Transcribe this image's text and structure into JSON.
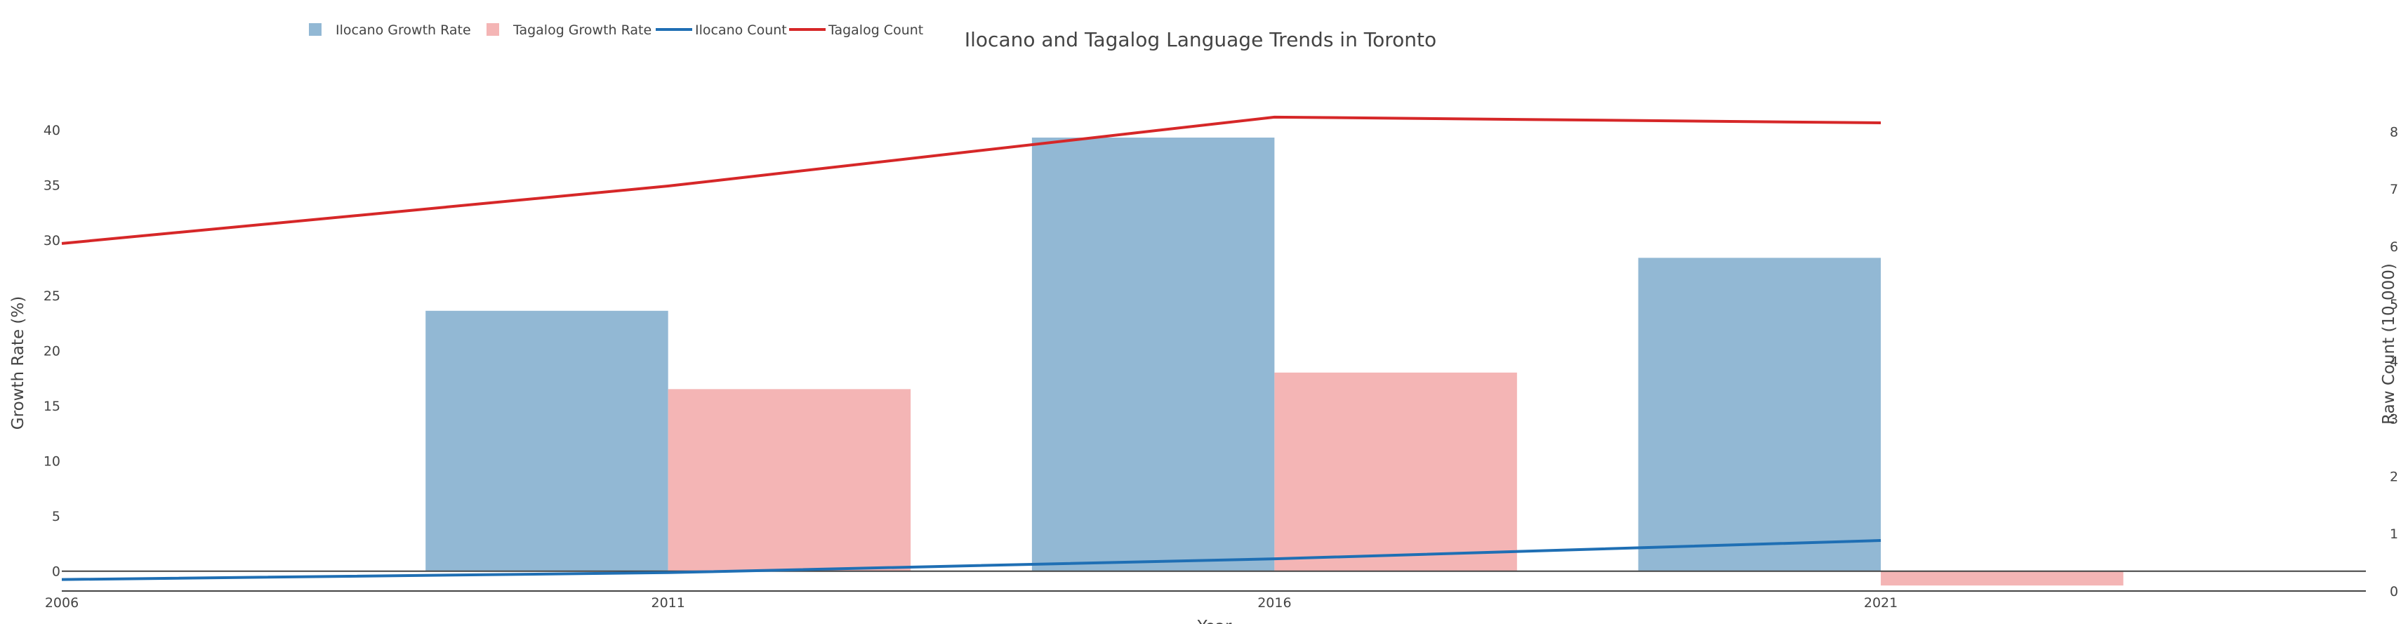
{
  "chart_data": {
    "type": "bar",
    "title": "Ilocano and Tagalog Language Trends in Toronto",
    "xlabel": "Year",
    "ylabel": "Growth Rate (%)",
    "y2label": "Raw Count (10,000)",
    "x_ticks": [
      "2006",
      "2011",
      "2016",
      "2021"
    ],
    "categories": [
      "2011",
      "2016",
      "2021"
    ],
    "y_ticks": [
      0,
      5,
      10,
      15,
      20,
      25,
      30,
      35,
      40
    ],
    "y2_ticks": [
      0,
      1,
      2,
      3,
      4,
      5,
      6,
      7,
      8
    ],
    "ylim": [
      -1.8,
      43.5
    ],
    "y2lim": [
      0,
      8.7
    ],
    "legend_position": "top-left",
    "series": [
      {
        "name": "Ilocano Growth Rate",
        "kind": "bar",
        "axis": "y",
        "color": "#92b8d4",
        "values": [
          23.6,
          39.3,
          28.4
        ]
      },
      {
        "name": "Tagalog Growth Rate",
        "kind": "bar",
        "axis": "y",
        "color": "#f4b5b5",
        "values": [
          16.5,
          18.0,
          -1.3
        ]
      },
      {
        "name": "Ilocano Count",
        "kind": "line",
        "axis": "y2",
        "color": "#1f6fb4",
        "x": [
          "2006",
          "2011",
          "2016",
          "2021"
        ],
        "values": [
          0.2,
          0.32,
          0.56,
          0.88
        ]
      },
      {
        "name": "Tagalog Count",
        "kind": "line",
        "axis": "y2",
        "color": "#d62728",
        "x": [
          "2006",
          "2011",
          "2016",
          "2021"
        ],
        "values": [
          6.05,
          7.05,
          8.25,
          8.15
        ]
      }
    ]
  }
}
